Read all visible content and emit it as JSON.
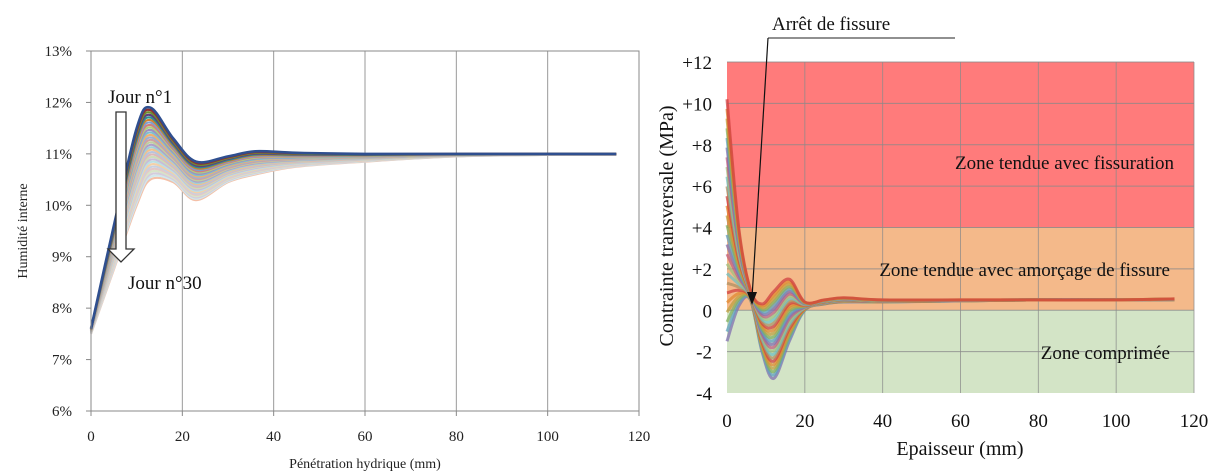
{
  "chart_data": [
    {
      "type": "line",
      "title": "",
      "xlabel": "Pénétration hydrique (mm)",
      "ylabel": "Humidité interne",
      "xlim": [
        0,
        120
      ],
      "ylim": [
        6,
        13
      ],
      "x_ticks": [
        "0",
        "20",
        "40",
        "60",
        "80",
        "100",
        "120"
      ],
      "y_ticks": [
        "6%",
        "7%",
        "8%",
        "9%",
        "10%",
        "11%",
        "12%",
        "13%"
      ],
      "grid": "vertical",
      "annotations": [
        "Jour n°1",
        "Jour n°30"
      ],
      "series_count": 30,
      "series_colors": [
        "#2f4f8f",
        "#8f2f2f",
        "#6f8f2f",
        "#5f3f7f",
        "#2f8f8f",
        "#d08030",
        "#7f9fcf",
        "#cf7f7f",
        "#afcf7f",
        "#9f8fbf",
        "#7fbfcf",
        "#efb070",
        "#9fb0d0",
        "#d0a0a0",
        "#c0d0a0",
        "#b0a0c8",
        "#a0d0d8",
        "#f0c090",
        "#b8c4dc",
        "#dcb8b8",
        "#ccdcb8",
        "#c8bcd8",
        "#bce0e4",
        "#f4d0a8",
        "#c8d0e0",
        "#e4c8c8",
        "#d8e4c8",
        "#d4ccdc",
        "#d0e8ec",
        "#f4c0a8"
      ],
      "series": [
        {
          "x": [
            0,
            5,
            10,
            13,
            18,
            23,
            30,
            36,
            45,
            60,
            80,
            100,
            115
          ],
          "y": [
            7.6,
            9.6,
            11.5,
            11.9,
            11.3,
            10.85,
            10.95,
            11.05,
            11.02,
            11.0,
            11.0,
            11.0,
            11.0
          ]
        },
        {
          "x": [
            0,
            5,
            10,
            13,
            18,
            23,
            30,
            36,
            45,
            60,
            80,
            100,
            115
          ],
          "y": [
            7.5,
            8.75,
            10.0,
            10.5,
            10.45,
            10.1,
            10.45,
            10.6,
            10.75,
            10.85,
            10.95,
            10.98,
            10.98
          ]
        }
      ]
    },
    {
      "type": "area",
      "title": "",
      "xlabel": "Epaisseur (mm)",
      "ylabel": "Contrainte transversale (MPa)",
      "xlim": [
        0,
        120
      ],
      "ylim": [
        -4,
        12
      ],
      "x_ticks": [
        "0",
        "20",
        "40",
        "60",
        "80",
        "100",
        "120"
      ],
      "y_ticks": [
        "-4",
        "-2",
        "0",
        "+2",
        "+4",
        "+6",
        "+8",
        "+10",
        "+12"
      ],
      "grid": "both",
      "zones": [
        {
          "label": "Zone tendue avec fissuration",
          "from": 4,
          "to": 12,
          "color": "#ff7b7b"
        },
        {
          "label": "Zone tendue avec amorçage de fissure",
          "from": 0,
          "to": 4,
          "color": "#f4b98a"
        },
        {
          "label": "Zone comprimée",
          "from": -4,
          "to": 0,
          "color": "#d3e4c6"
        }
      ],
      "annotations": [
        "Arrêt de fissure"
      ],
      "series_colors": [
        "#d04040",
        "#e08a30",
        "#c0a040",
        "#7fb060",
        "#60a0c0",
        "#8070b0",
        "#c06080",
        "#a0c080",
        "#70c0c0",
        "#b09060"
      ],
      "series": [
        {
          "x": [
            0,
            3,
            6,
            9,
            12,
            16,
            20,
            25,
            30,
            40,
            60,
            80,
            100,
            115
          ],
          "y": [
            10.2,
            4.0,
            1.0,
            0.3,
            0.9,
            1.5,
            0.4,
            0.5,
            0.6,
            0.5,
            0.5,
            0.5,
            0.5,
            0.55
          ]
        },
        {
          "x": [
            0,
            3,
            6,
            9,
            12,
            16,
            20,
            25,
            30,
            40,
            60,
            80,
            100,
            115
          ],
          "y": [
            -1.5,
            0.2,
            0.5,
            -2.0,
            -3.3,
            -1.5,
            0.0,
            0.3,
            0.4,
            0.4,
            0.45,
            0.5,
            0.5,
            0.5
          ]
        }
      ]
    }
  ]
}
